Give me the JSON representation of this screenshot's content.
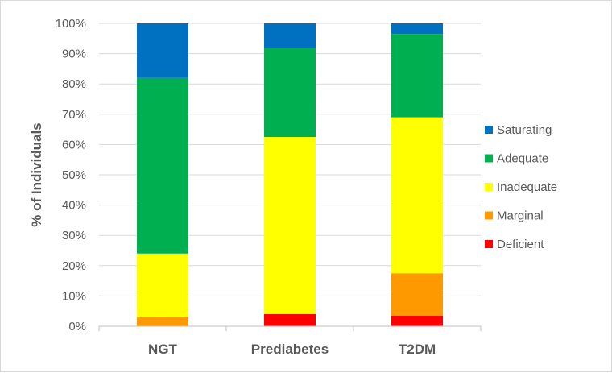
{
  "chart_data": {
    "type": "bar",
    "stacked": true,
    "percent": true,
    "categories": [
      "NGT",
      "Prediabetes",
      "T2DM"
    ],
    "series": [
      {
        "name": "Deficient",
        "color": "#ff0000",
        "values": [
          0,
          4,
          3.5
        ]
      },
      {
        "name": "Marginal",
        "color": "#ff9900",
        "values": [
          3,
          0,
          14
        ]
      },
      {
        "name": "Inadequate",
        "color": "#ffff00",
        "values": [
          21,
          58.5,
          51.5
        ]
      },
      {
        "name": "Adequate",
        "color": "#00b050",
        "values": [
          58,
          29.5,
          27.5
        ]
      },
      {
        "name": "Saturating",
        "color": "#0070c0",
        "values": [
          18,
          8,
          3.5
        ]
      }
    ],
    "ylabel": "% of Individuals",
    "xlabel": "",
    "ylim": [
      0,
      100
    ],
    "yticks": [
      "0%",
      "10%",
      "20%",
      "30%",
      "40%",
      "50%",
      "60%",
      "70%",
      "80%",
      "90%",
      "100%"
    ],
    "grid": true,
    "legend": {
      "position": "right",
      "order": [
        "Saturating",
        "Adequate",
        "Inadequate",
        "Marginal",
        "Deficient"
      ]
    }
  }
}
